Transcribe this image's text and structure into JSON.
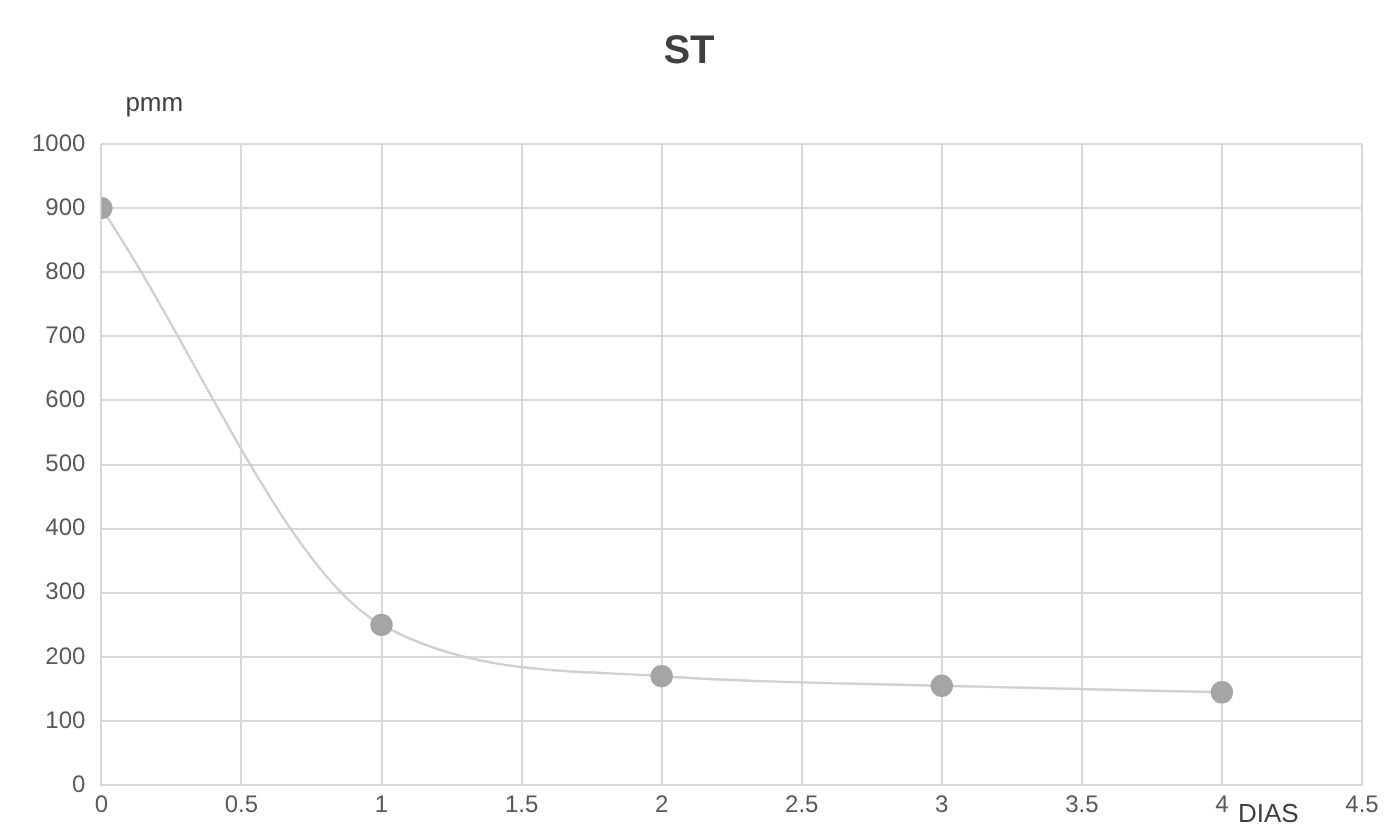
{
  "chart_data": {
    "type": "line",
    "title": "ST",
    "xlabel": "DIAS",
    "ylabel": "pmm",
    "x": [
      0,
      1,
      2,
      3,
      4
    ],
    "series": [
      {
        "color": "#a5a5a5",
        "values": [
          900,
          250,
          170,
          155,
          145
        ]
      }
    ],
    "xlim": [
      0,
      4.5
    ],
    "xticks": [
      0,
      0.5,
      1,
      1.5,
      2,
      2.5,
      3,
      3.5,
      4,
      4.5
    ],
    "ylim": [
      0,
      1000
    ],
    "yticks": [
      0,
      100,
      200,
      300,
      400,
      500,
      600,
      700,
      800,
      900,
      1000
    ],
    "grid": true,
    "legend": false,
    "marker": "circle",
    "line_style": "solid"
  }
}
